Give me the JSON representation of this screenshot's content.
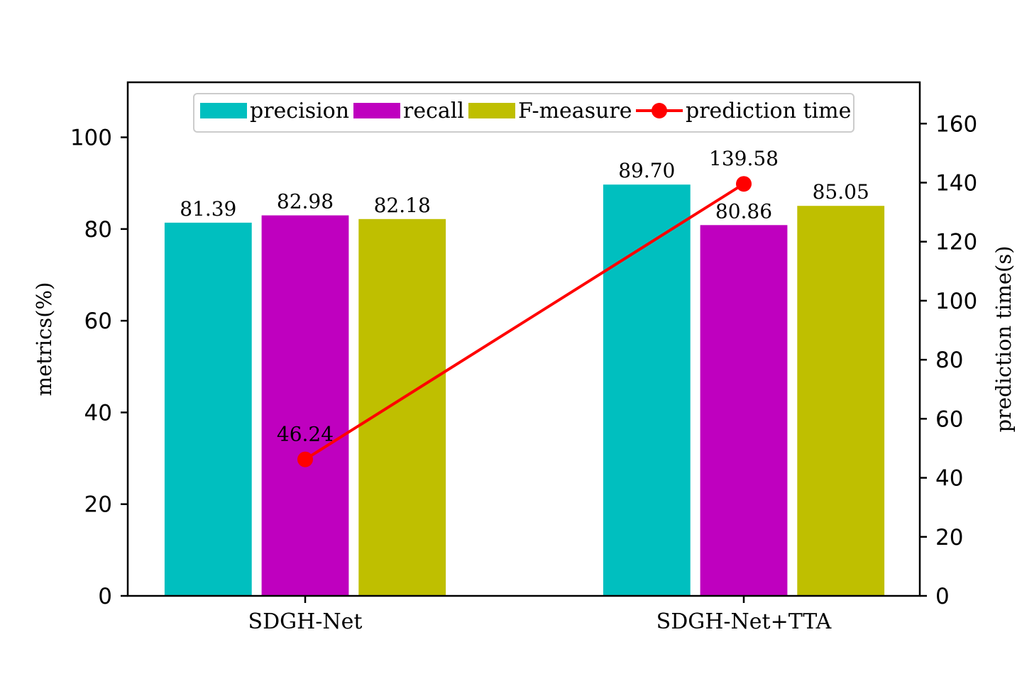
{
  "chart_data": {
    "type": "bar",
    "categories": [
      "SDGH-Net",
      "SDGH-Net+TTA"
    ],
    "series": [
      {
        "name": "precision",
        "values": [
          81.39,
          89.7
        ],
        "labels": [
          "81.39",
          "89.70"
        ],
        "color": "#00bfbf"
      },
      {
        "name": "recall",
        "values": [
          82.98,
          80.86
        ],
        "labels": [
          "82.98",
          "80.86"
        ],
        "color": "#bf00bf"
      },
      {
        "name": "F-measure",
        "values": [
          82.18,
          85.05
        ],
        "labels": [
          "82.18",
          "85.05"
        ],
        "color": "#bfbf00"
      }
    ],
    "line_series": {
      "name": "prediction time",
      "values": [
        46.24,
        139.58
      ],
      "labels": [
        "46.24",
        "139.58"
      ],
      "color": "#ff0000",
      "axis": "right"
    },
    "ylabel": "metrics(%)",
    "ylabel_right": "prediction time(s)",
    "ylim": [
      0,
      112
    ],
    "ylim_right": [
      0,
      174
    ],
    "yticks": [
      0,
      20,
      40,
      60,
      80,
      100
    ],
    "yticks_right": [
      0,
      20,
      40,
      60,
      80,
      100,
      120,
      140,
      160
    ],
    "legend": [
      "precision",
      "recall",
      "F-measure",
      "prediction time"
    ],
    "legend_position": "top-center"
  }
}
